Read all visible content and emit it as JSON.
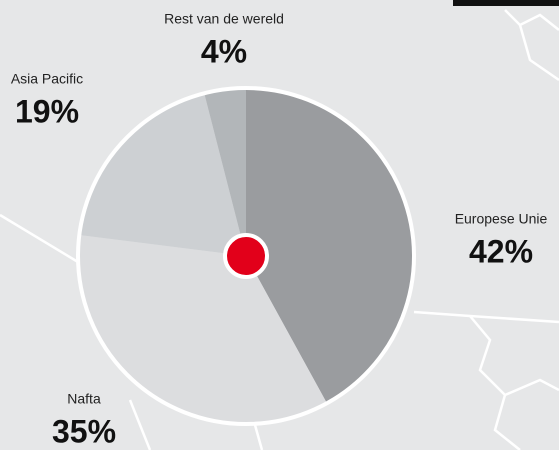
{
  "chart_data": {
    "type": "pie",
    "categories": [
      "Europese Unie",
      "Nafta",
      "Asia Pacific",
      "Rest van de wereld"
    ],
    "values": [
      42,
      35,
      19,
      4
    ],
    "value_labels": [
      "42%",
      "35%",
      "19%",
      "4%"
    ],
    "colors": [
      "#9a9c9f",
      "#dcdddf",
      "#cdd0d3",
      "#b2b6b9"
    ]
  }
}
